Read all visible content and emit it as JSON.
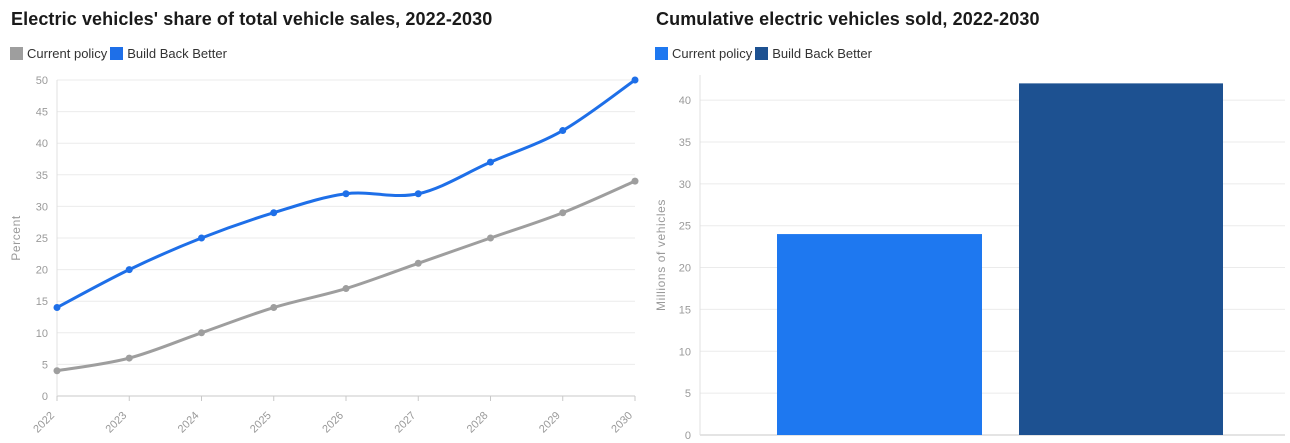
{
  "chart_data": [
    {
      "type": "line",
      "title": "Electric vehicles' share of total vehicle sales, 2022-2030",
      "categories": [
        "2022",
        "2023",
        "2024",
        "2025",
        "2026",
        "2027",
        "2028",
        "2029",
        "2030"
      ],
      "series": [
        {
          "name": "Current policy",
          "color": "#9e9e9e",
          "values": [
            4,
            6,
            10,
            14,
            17,
            21,
            25,
            29,
            34
          ]
        },
        {
          "name": "Build Back Better",
          "color": "#1e6fe8",
          "values": [
            14,
            20,
            25,
            29,
            32,
            32,
            37,
            42,
            50
          ]
        }
      ],
      "xlabel": "",
      "ylabel": "Percent",
      "ylim": [
        0,
        50
      ],
      "yticks": [
        0,
        5,
        10,
        15,
        20,
        25,
        30,
        35,
        40,
        45,
        50
      ],
      "grid": true,
      "legend_position": "top-left",
      "marker": "circle"
    },
    {
      "type": "bar",
      "title": "Cumulative electric vehicles sold, 2022-2030",
      "series": [
        {
          "name": "Current policy",
          "color": "#1e78f0",
          "value": 24
        },
        {
          "name": "Build Back Better",
          "color": "#1d5191",
          "value": 42
        }
      ],
      "xlabel": "",
      "ylabel": "Millions of vehicles",
      "ylim": [
        0,
        43
      ],
      "yticks": [
        0,
        5,
        10,
        15,
        20,
        25,
        30,
        35,
        40
      ],
      "grid": true,
      "legend_position": "top-left"
    }
  ],
  "style_colors": {
    "gridline": "#ebebeb",
    "baseline": "#c8c8c8",
    "axis_line": "#e0e0e0",
    "tick_text": "#9a9a9a",
    "axis_label_text": "#9a9a9a"
  }
}
